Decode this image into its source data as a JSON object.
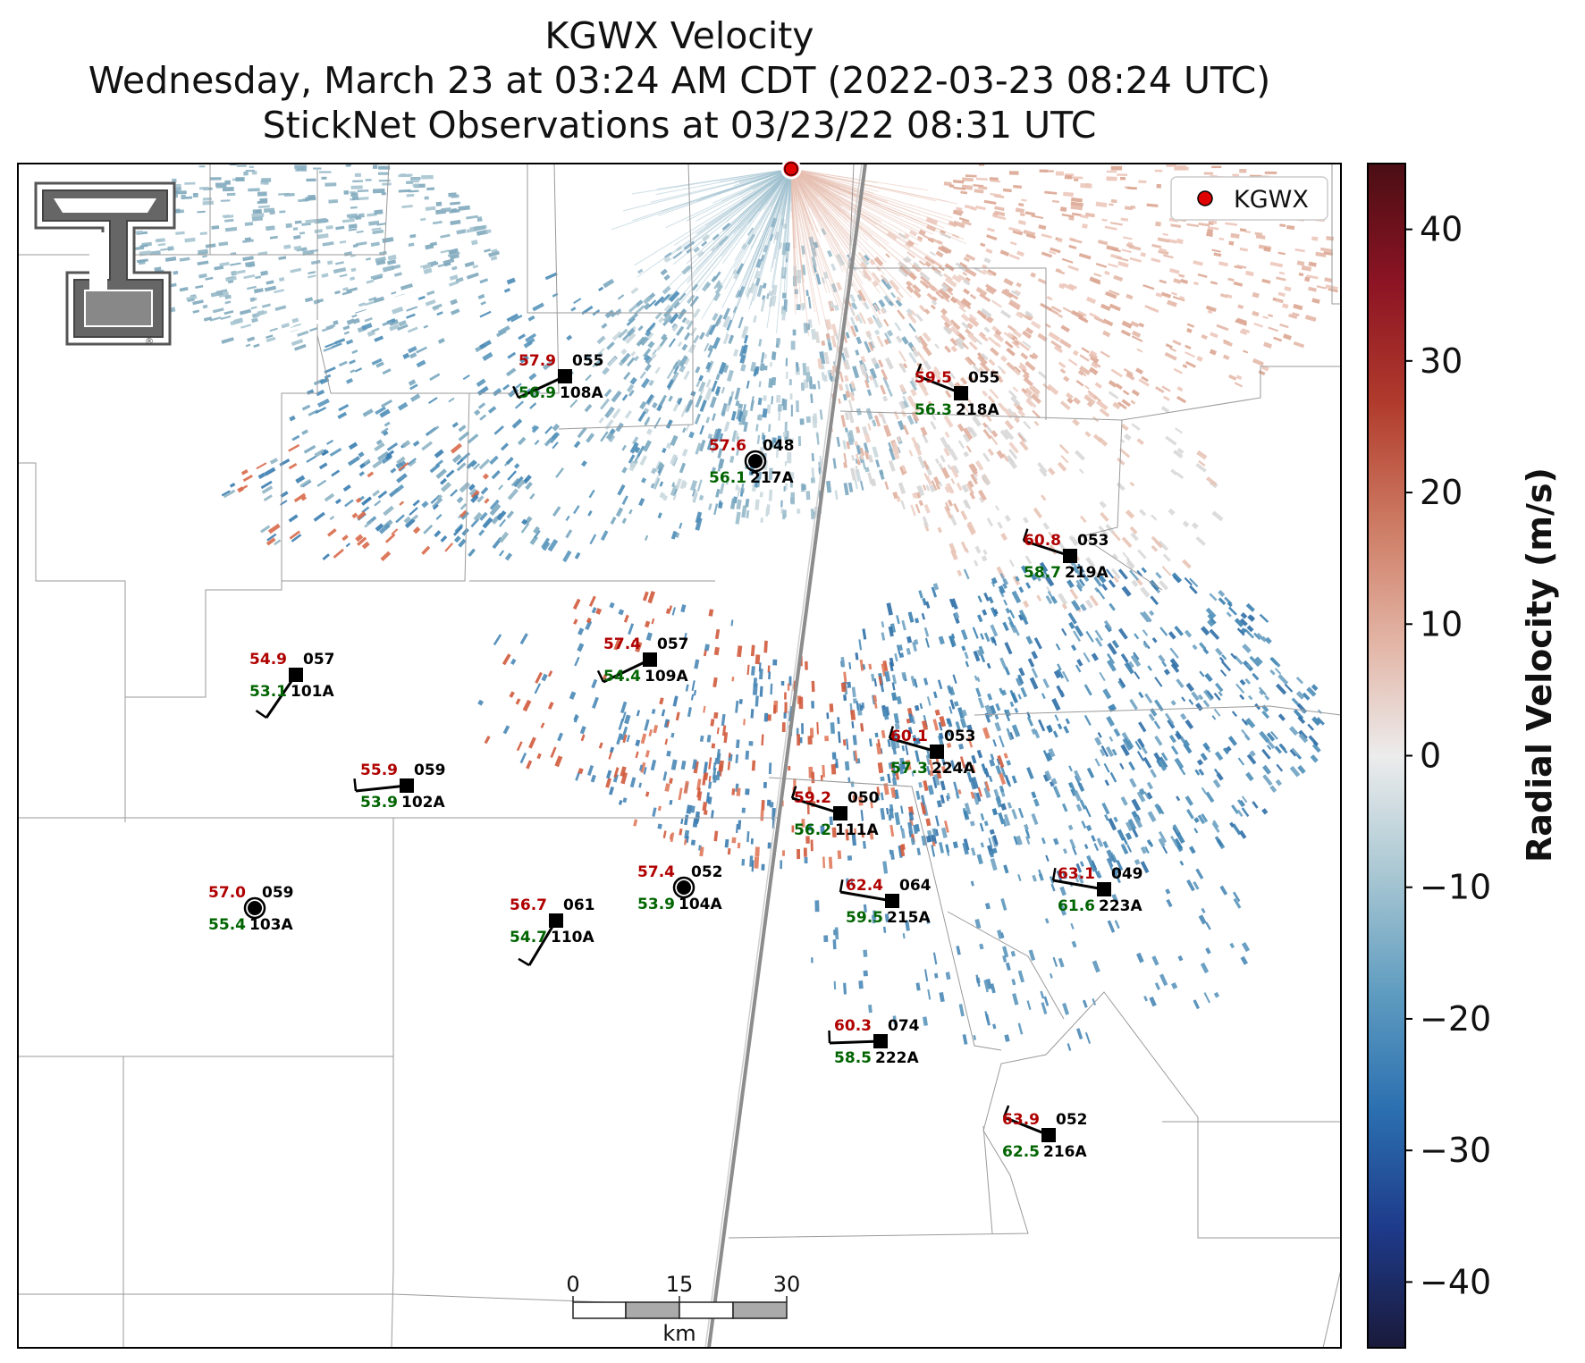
{
  "title": {
    "line1": "KGWX Velocity",
    "line2": "Wednesday, March 23 at 03:24 AM CDT (2022-03-23 08:24 UTC)",
    "line3": "StickNet Observations at 03/23/22 08:31 UTC"
  },
  "legend": {
    "label": "KGWX",
    "marker_color": "#e00000"
  },
  "radar_site": {
    "name": "KGWX"
  },
  "scalebar": {
    "ticks": [
      "0",
      "15",
      "30"
    ],
    "unit": "km"
  },
  "colorbar": {
    "label": "Radial Velocity (m/s)",
    "min": -45,
    "max": 45,
    "ticks": [
      40,
      30,
      20,
      10,
      0,
      -10,
      -20,
      -30,
      -40
    ],
    "tick_labels": [
      "40",
      "30",
      "20",
      "10",
      "0",
      "−10",
      "−20",
      "−30",
      "−40"
    ],
    "colors": [
      "#1a1a3a",
      "#1e3a8a",
      "#2b6fb0",
      "#5f9cc0",
      "#a9c7d3",
      "#ececec",
      "#e2b2a2",
      "#cc7860",
      "#b03a2c",
      "#8c1424",
      "#4a0e14"
    ]
  },
  "stations": [
    {
      "id": "108A",
      "temp": "57.9",
      "dew": "56.9",
      "dir": "055"
    },
    {
      "id": "218A",
      "temp": "59.5",
      "dew": "56.3",
      "dir": "055"
    },
    {
      "id": "217A",
      "temp": "57.6",
      "dew": "56.1",
      "dir": "048"
    },
    {
      "id": "219A",
      "temp": "60.8",
      "dew": "58.7",
      "dir": "053"
    },
    {
      "id": "101A",
      "temp": "54.9",
      "dew": "53.1",
      "dir": "057"
    },
    {
      "id": "109A",
      "temp": "57.4",
      "dew": "54.4",
      "dir": "057"
    },
    {
      "id": "224A",
      "temp": "60.1",
      "dew": "57.3",
      "dir": "053"
    },
    {
      "id": "102A",
      "temp": "55.9",
      "dew": "53.9",
      "dir": "059"
    },
    {
      "id": "111A",
      "temp": "59.2",
      "dew": "56.2",
      "dir": "050"
    },
    {
      "id": "103A",
      "temp": "57.0",
      "dew": "55.4",
      "dir": "059"
    },
    {
      "id": "110A",
      "temp": "56.7",
      "dew": "54.7",
      "dir": "061"
    },
    {
      "id": "104A",
      "temp": "57.4",
      "dew": "53.9",
      "dir": "052"
    },
    {
      "id": "215A",
      "temp": "62.4",
      "dew": "59.5",
      "dir": "064"
    },
    {
      "id": "223A",
      "temp": "63.1",
      "dew": "61.6",
      "dir": "049"
    },
    {
      "id": "222A",
      "temp": "60.3",
      "dew": "58.5",
      "dir": "074"
    },
    {
      "id": "216A",
      "temp": "63.9",
      "dew": "62.5",
      "dir": "052"
    }
  ],
  "colors": {
    "temp": "#b00000",
    "dew": "#006400",
    "label": "#000000"
  }
}
